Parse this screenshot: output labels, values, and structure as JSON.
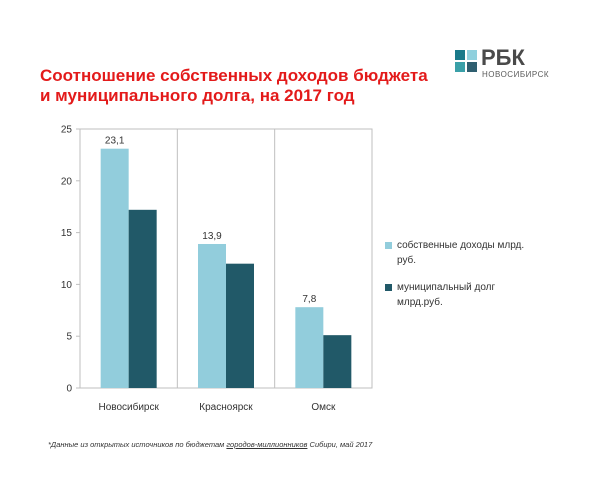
{
  "title_lines": [
    "Соотношение собственных доходов бюджета",
    "и муниципального долга, на 2017 год"
  ],
  "logo": {
    "text": "РБК",
    "subtitle": "НОВОСИБИРСК",
    "colors": [
      "#1a7a8a",
      "#8fd0dd",
      "#3aa0a8",
      "#2f5f70"
    ]
  },
  "footnote": {
    "before": "*Данные из открытых источников по бюджетам ",
    "underlined": "городов-миллионников",
    "after": " Сибири, май 2017"
  },
  "chart_data": {
    "type": "bar",
    "categories": [
      "Новосибирск",
      "Красноярск",
      "Омск"
    ],
    "series": [
      {
        "name": "собственные доходы млрд. руб.",
        "name_lines": [
          "собственные доходы млрд.",
          "руб."
        ],
        "values": [
          23.1,
          13.9,
          7.8
        ],
        "labels": [
          "23,1",
          "13,9",
          "7,8"
        ],
        "color": "#92cddc"
      },
      {
        "name": "муниципальный долг млрд.руб.",
        "name_lines": [
          "муниципальный долг",
          "млрд.руб."
        ],
        "values": [
          17.2,
          12.0,
          5.1
        ],
        "color": "#215968"
      }
    ],
    "ylim": [
      0,
      25
    ],
    "yticks": [
      0,
      5,
      10,
      15,
      20,
      25
    ],
    "grid": "vertical category separators",
    "legend": "right"
  }
}
